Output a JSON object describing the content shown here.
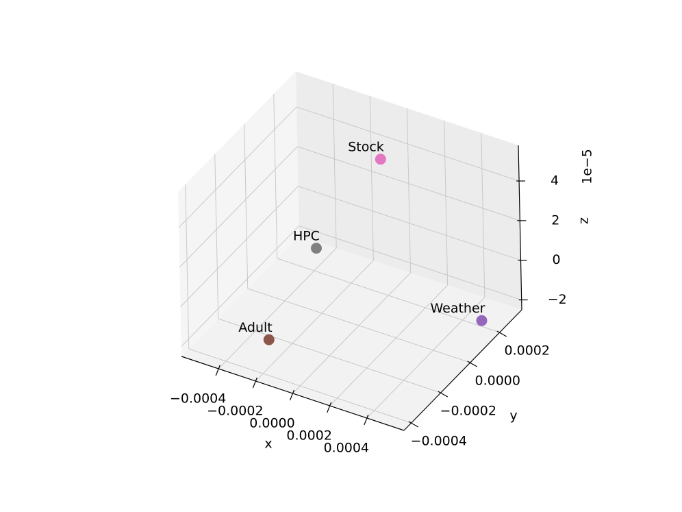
{
  "chart_data": {
    "type": "scatter3d",
    "xlabel": "x",
    "ylabel": "y",
    "zlabel": "z",
    "z_offset": "1e−5",
    "series": [
      {
        "name": "Stock",
        "color": "#e377c2",
        "x": [
          3e-05
        ],
        "y": [
          0.00013
        ],
        "z": [
          5e-05
        ]
      },
      {
        "name": "HPC",
        "color": "#7f7f7f",
        "x": [
          -0.00028
        ],
        "y": [
          7e-05
        ],
        "z": [
          0
        ]
      },
      {
        "name": "Adult",
        "color": "#8c564b",
        "x": [
          -0.00027
        ],
        "y": [
          -0.00027
        ],
        "z": [
          -2e-05
        ]
      },
      {
        "name": "Weather",
        "color": "#9467bd",
        "x": [
          0.00052
        ],
        "y": [
          0.00018
        ],
        "z": [
          -2e-05
        ]
      }
    ],
    "xlim": [
      -0.0006,
      0.0006
    ],
    "xticks": [
      {
        "value": -0.0004,
        "label": "−0.0004"
      },
      {
        "value": -0.0002,
        "label": "−0.0002"
      },
      {
        "value": 0,
        "label": "0.0000"
      },
      {
        "value": 0.0002,
        "label": "0.0002"
      },
      {
        "value": 0.0004,
        "label": "0.0004"
      }
    ],
    "ylim": [
      -0.00045,
      0.00035
    ],
    "yticks": [
      {
        "value": -0.0004,
        "label": "−0.0004"
      },
      {
        "value": -0.0002,
        "label": "−0.0002"
      },
      {
        "value": 0,
        "label": "0.0000"
      },
      {
        "value": 0.0002,
        "label": "0.0002"
      }
    ],
    "zlim": [
      -2.5e-05,
      5.8e-05
    ],
    "zticks": [
      {
        "value": -2e-05,
        "label": "−2"
      },
      {
        "value": 0,
        "label": "0"
      },
      {
        "value": 2e-05,
        "label": "2"
      },
      {
        "value": 4e-05,
        "label": "4"
      }
    ],
    "grid": true
  }
}
